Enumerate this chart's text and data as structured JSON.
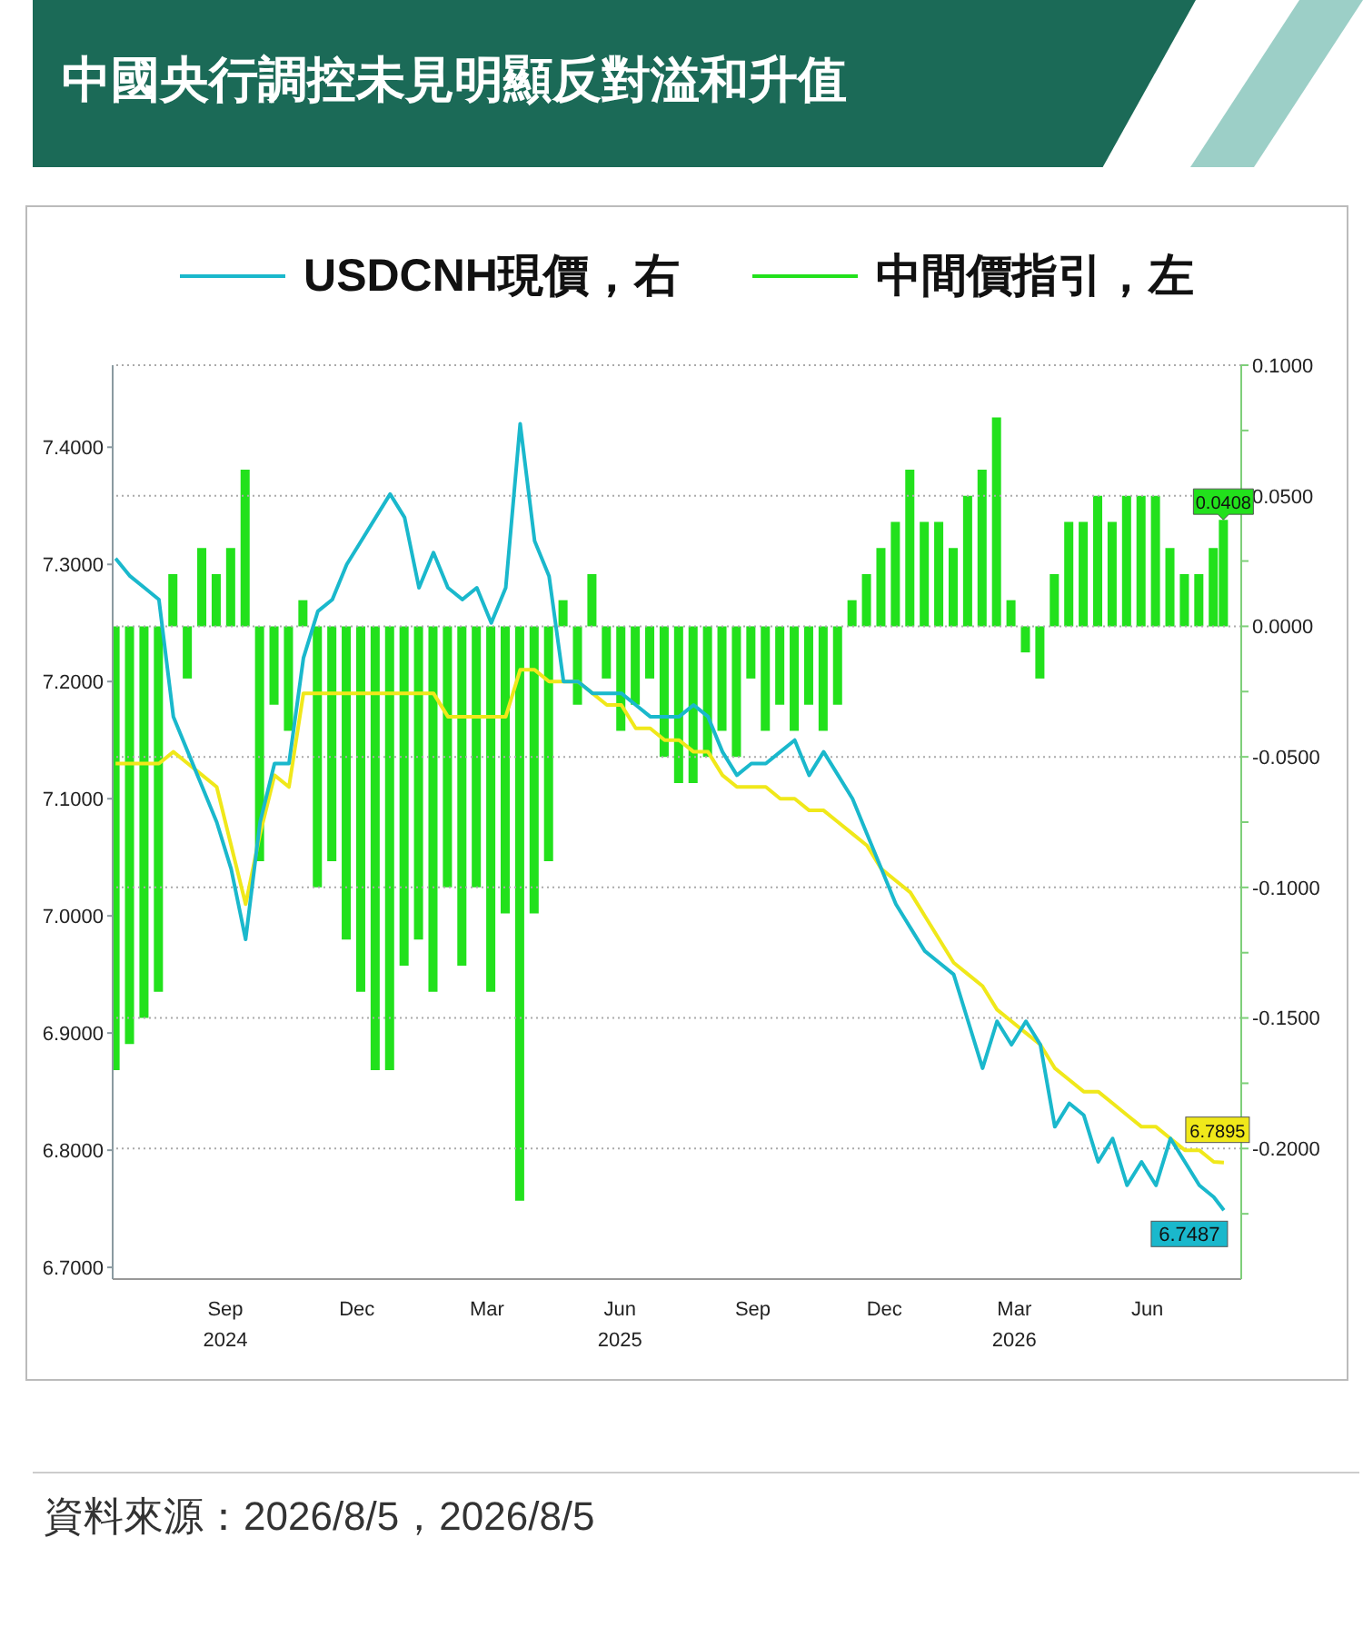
{
  "chart_data": {
    "type": "line",
    "title": "中國央行調控未見明顯反對溢和升值",
    "x": [
      "2024-06-17",
      "2024-06-27",
      "2024-07-07",
      "2024-07-17",
      "2024-07-27",
      "2024-08-06",
      "2024-08-16",
      "2024-08-26",
      "2024-09-05",
      "2024-09-15",
      "2024-09-25",
      "2024-10-05",
      "2024-10-15",
      "2024-10-25",
      "2024-11-04",
      "2024-11-14",
      "2024-11-24",
      "2024-12-04",
      "2024-12-14",
      "2024-12-24",
      "2025-01-03",
      "2025-01-13",
      "2025-01-23",
      "2025-02-02",
      "2025-02-12",
      "2025-02-22",
      "2025-03-04",
      "2025-03-14",
      "2025-03-24",
      "2025-04-03",
      "2025-04-13",
      "2025-04-23",
      "2025-05-03",
      "2025-05-13",
      "2025-05-23",
      "2025-06-02",
      "2025-06-12",
      "2025-06-22",
      "2025-07-02",
      "2025-07-12",
      "2025-07-22",
      "2025-08-01",
      "2025-08-11",
      "2025-08-21",
      "2025-08-31",
      "2025-09-10",
      "2025-09-20",
      "2025-09-30",
      "2025-10-10",
      "2025-10-20",
      "2025-10-30",
      "2025-11-09",
      "2025-11-19",
      "2025-11-29",
      "2025-12-09",
      "2025-12-19",
      "2025-12-29",
      "2026-01-08",
      "2026-01-18",
      "2026-01-28",
      "2026-02-07",
      "2026-02-17",
      "2026-02-27",
      "2026-03-09",
      "2026-03-19",
      "2026-03-29",
      "2026-04-08",
      "2026-04-18",
      "2026-04-28",
      "2026-05-08",
      "2026-05-18",
      "2026-05-28",
      "2026-06-07",
      "2026-06-17",
      "2026-06-27",
      "2026-07-07",
      "2026-07-17",
      "2026-07-24"
    ],
    "series": [
      {
        "type": "bar",
        "axis": "y2",
        "name": "中間價指引，左",
        "color": "#22e11c",
        "values": [
          -0.17,
          -0.16,
          -0.15,
          -0.14,
          0.02,
          -0.02,
          0.03,
          0.02,
          0.03,
          0.06,
          -0.09,
          -0.03,
          -0.04,
          0.01,
          -0.1,
          -0.09,
          -0.12,
          -0.14,
          -0.17,
          -0.17,
          -0.13,
          -0.12,
          -0.14,
          -0.1,
          -0.13,
          -0.1,
          -0.14,
          -0.11,
          -0.22,
          -0.11,
          -0.09,
          0.01,
          -0.03,
          0.02,
          -0.02,
          -0.04,
          -0.03,
          -0.02,
          -0.05,
          -0.06,
          -0.06,
          -0.05,
          -0.04,
          -0.05,
          -0.02,
          -0.04,
          -0.03,
          -0.04,
          -0.03,
          -0.04,
          -0.03,
          0.01,
          0.02,
          0.03,
          0.04,
          0.06,
          0.04,
          0.04,
          0.03,
          0.05,
          0.06,
          0.08,
          0.01,
          -0.01,
          -0.02,
          0.02,
          0.04,
          0.04,
          0.05,
          0.04,
          0.05,
          0.05,
          0.05,
          0.03,
          0.02,
          0.02,
          0.03,
          0.0408
        ],
        "value_labels": [
          null,
          null,
          null,
          null,
          null,
          null,
          null,
          null,
          null,
          null,
          null,
          null,
          null,
          null,
          null,
          null,
          null,
          null,
          null,
          null,
          null,
          null,
          null,
          null,
          null,
          null,
          null,
          null,
          null,
          null,
          null,
          null,
          null,
          null,
          null,
          null,
          null,
          null,
          null,
          null,
          null,
          null,
          null,
          null,
          null,
          null,
          null,
          null,
          null,
          null,
          null,
          null,
          null,
          null,
          null,
          null,
          null,
          null,
          null,
          null,
          null,
          null,
          null,
          null,
          null,
          null,
          null,
          null,
          null,
          null,
          null,
          null,
          null,
          null,
          null,
          null,
          null,
          "0.0408"
        ]
      },
      {
        "color": "#f0e81a",
        "values": [
          7.13,
          7.13,
          7.13,
          7.13,
          7.14,
          7.13,
          7.12,
          7.11,
          7.06,
          7.01,
          7.07,
          7.12,
          7.11,
          7.19,
          7.19,
          7.19,
          7.19,
          7.19,
          7.19,
          7.19,
          7.19,
          7.19,
          7.19,
          7.17,
          7.17,
          7.17,
          7.17,
          7.17,
          7.21,
          7.21,
          7.2,
          7.2,
          7.2,
          7.19,
          7.18,
          7.18,
          7.16,
          7.16,
          7.15,
          7.15,
          7.14,
          7.14,
          7.12,
          7.11,
          7.11,
          7.11,
          7.1,
          7.1,
          7.09,
          7.09,
          7.08,
          7.07,
          7.06,
          7.04,
          7.03,
          7.02,
          7.0,
          6.98,
          6.96,
          6.95,
          6.94,
          6.92,
          6.91,
          6.9,
          6.89,
          6.87,
          6.86,
          6.85,
          6.85,
          6.84,
          6.83,
          6.82,
          6.82,
          6.81,
          6.8,
          6.8,
          6.79,
          6.7895
        ],
        "value_labels": [
          null,
          null,
          null,
          null,
          null,
          null,
          null,
          null,
          null,
          null,
          null,
          null,
          null,
          null,
          null,
          null,
          null,
          null,
          null,
          null,
          null,
          null,
          null,
          null,
          null,
          null,
          null,
          null,
          null,
          null,
          null,
          null,
          null,
          null,
          null,
          null,
          null,
          null,
          null,
          null,
          null,
          null,
          null,
          null,
          null,
          null,
          null,
          null,
          null,
          null,
          null,
          null,
          null,
          null,
          null,
          null,
          null,
          null,
          null,
          null,
          null,
          null,
          null,
          null,
          null,
          null,
          null,
          null,
          null,
          null,
          null,
          null,
          null,
          null,
          null,
          null,
          null,
          "6.7895"
        ]
      },
      {
        "name": "USDCNH現價，右",
        "color": "#1ab8cc",
        "values": [
          7.305,
          7.29,
          7.28,
          7.27,
          7.17,
          7.14,
          7.11,
          7.08,
          7.04,
          6.98,
          7.08,
          7.13,
          7.13,
          7.22,
          7.26,
          7.27,
          7.3,
          7.32,
          7.34,
          7.36,
          7.34,
          7.28,
          7.31,
          7.28,
          7.27,
          7.28,
          7.25,
          7.28,
          7.42,
          7.32,
          7.29,
          7.2,
          7.2,
          7.19,
          7.19,
          7.19,
          7.18,
          7.17,
          7.17,
          7.17,
          7.18,
          7.17,
          7.14,
          7.12,
          7.13,
          7.13,
          7.14,
          7.15,
          7.12,
          7.14,
          7.12,
          7.1,
          7.07,
          7.04,
          7.01,
          6.99,
          6.97,
          6.96,
          6.95,
          6.91,
          6.87,
          6.91,
          6.89,
          6.91,
          6.89,
          6.82,
          6.84,
          6.83,
          6.79,
          6.81,
          6.77,
          6.79,
          6.77,
          6.81,
          6.79,
          6.77,
          6.76,
          6.7487
        ],
        "value_labels": [
          null,
          null,
          null,
          null,
          null,
          null,
          null,
          null,
          null,
          null,
          null,
          null,
          null,
          null,
          null,
          null,
          null,
          null,
          null,
          null,
          null,
          null,
          null,
          null,
          null,
          null,
          null,
          null,
          null,
          null,
          null,
          null,
          null,
          null,
          null,
          null,
          null,
          null,
          null,
          null,
          null,
          null,
          null,
          null,
          null,
          null,
          null,
          null,
          null,
          null,
          null,
          null,
          null,
          null,
          null,
          null,
          null,
          null,
          null,
          null,
          null,
          null,
          null,
          null,
          null,
          null,
          null,
          null,
          null,
          null,
          null,
          null,
          null,
          null,
          null,
          null,
          null,
          "6.7487"
        ]
      }
    ],
    "xlim": [
      "2024-06-15",
      "2026-08-05"
    ],
    "xticks": [
      {
        "value": "2024-09-01",
        "label": "Sep 2024"
      },
      {
        "value": "2024-12-01",
        "label": "Dec"
      },
      {
        "value": "2025-03-01",
        "label": "Mar"
      },
      {
        "value": "2025-06-01",
        "label": "Jun 2025"
      },
      {
        "value": "2025-09-01",
        "label": "Sep"
      },
      {
        "value": "2025-12-01",
        "label": "Dec"
      },
      {
        "value": "2026-03-01",
        "label": "Mar 2026"
      },
      {
        "value": "2026-06-01",
        "label": "Jun"
      }
    ],
    "ylim": [
      6.69,
      7.47
    ],
    "yticks": [
      {
        "value": 6.7,
        "label": "6.7000"
      },
      {
        "value": 6.8,
        "label": "6.8000"
      },
      {
        "value": 6.9,
        "label": "6.9000"
      },
      {
        "value": 7.0,
        "label": "7.0000"
      },
      {
        "value": 7.1,
        "label": "7.1000"
      },
      {
        "value": 7.2,
        "label": "7.2000"
      },
      {
        "value": 7.3,
        "label": "7.3000"
      },
      {
        "value": 7.4,
        "label": "7.4000"
      }
    ],
    "y2lim": [
      -0.25,
      0.1
    ],
    "y2ticks": [
      {
        "value": -0.225,
        "label": null
      },
      {
        "value": -0.2,
        "label": "-0.2000"
      },
      {
        "value": -0.175,
        "label": null
      },
      {
        "value": -0.15,
        "label": "-0.1500"
      },
      {
        "value": -0.125,
        "label": null
      },
      {
        "value": -0.1,
        "label": "-0.1000"
      },
      {
        "value": -0.075,
        "label": null
      },
      {
        "value": -0.05,
        "label": "-0.0500"
      },
      {
        "value": -0.025,
        "label": null
      },
      {
        "value": 0,
        "label": "0.0000"
      },
      {
        "value": 0.025,
        "label": null
      },
      {
        "value": 0.05,
        "label": "0.0500"
      },
      {
        "value": 0.075,
        "label": null
      },
      {
        "value": 0.1,
        "label": "0.1000"
      }
    ],
    "grid": "y",
    "legend": "top",
    "annotations": [
      "資料來源：2026/8/5，2026/8/5"
    ]
  }
}
